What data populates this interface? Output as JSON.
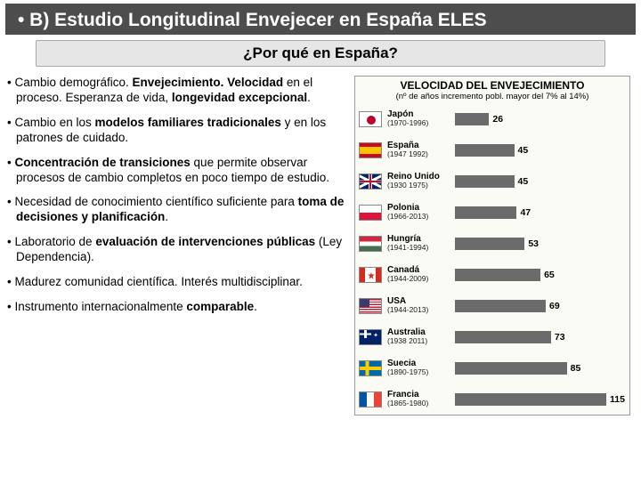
{
  "title_line1": "• B) Estudio Longitudinal Envejecer en España ELES",
  "subtitle": "¿Por qué en España?",
  "bullets": [
    "Cambio demográfico. <b>Envejecimiento. Velocidad</b> en el proceso. Esperanza de vida, <b>longevidad excepcional</b>.",
    "Cambio en los <b>modelos familiares tradicionales</b> y en los patrones de cuidado.",
    "<b>Concentración de transiciones</b> que permite observar procesos de cambio completos en poco tiempo de estudio.",
    "Necesidad de conocimiento científico suficiente para <b>toma de decisiones y planificación</b>.",
    "Laboratorio de <b>evaluación de intervenciones públicas</b> (Ley Dependencia).",
    "Madurez comunidad científica. Interés multidisciplinar.",
    "Instrumento internacionalmente <b>comparable</b>."
  ],
  "chart": {
    "title": "VELOCIDAD DEL ENVEJECIMIENTO",
    "subtitle": "(nº de años incremento pobl. mayor del 7% al 14%)",
    "max_value": 115,
    "bar_color": "#6b6b6b",
    "background": "#fbfbf5",
    "rows": [
      {
        "flag": "japan",
        "country": "Japón",
        "years": "(1970-1996)",
        "value": 26
      },
      {
        "flag": "spain",
        "country": "España",
        "years": "(1947 1992)",
        "value": 45
      },
      {
        "flag": "uk",
        "country": "Reino Unido",
        "years": "(1930 1975)",
        "value": 45
      },
      {
        "flag": "poland",
        "country": "Polonia",
        "years": "(1966-2013)",
        "value": 47
      },
      {
        "flag": "hungary",
        "country": "Hungría",
        "years": "(1941-1994)",
        "value": 53
      },
      {
        "flag": "canada",
        "country": "Canadá",
        "years": "(1944-2009)",
        "value": 65
      },
      {
        "flag": "usa",
        "country": "USA",
        "years": "(1944-2013)",
        "value": 69
      },
      {
        "flag": "australia",
        "country": "Australia",
        "years": "(1938 2011)",
        "value": 73
      },
      {
        "flag": "sweden",
        "country": "Suecia",
        "years": "(1890-1975)",
        "value": 85
      },
      {
        "flag": "france",
        "country": "Francia",
        "years": "(1865-1980)",
        "value": 115
      }
    ]
  }
}
